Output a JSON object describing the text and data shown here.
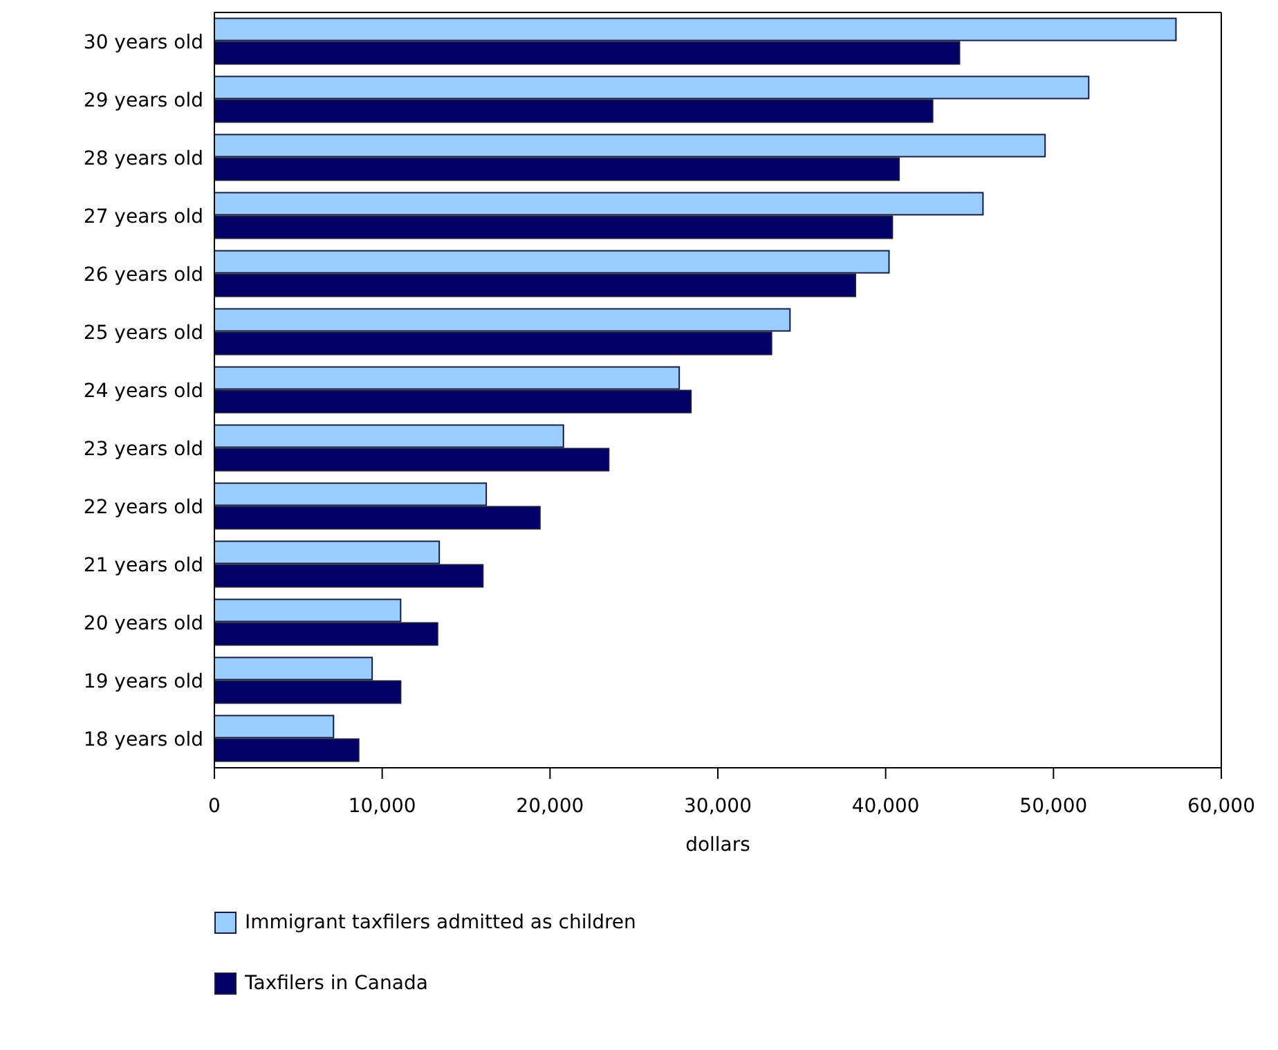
{
  "chart_data": {
    "type": "bar",
    "orientation": "horizontal",
    "xlabel": "dollars",
    "categories": [
      "30 years old",
      "29 years old",
      "28 years old",
      "27 years old",
      "26 years old",
      "25 years old",
      "24 years old",
      "23 years old",
      "22 years old",
      "21 years old",
      "20 years old",
      "19 years old",
      "18 years old"
    ],
    "series": [
      {
        "name": "Immigrant taxfilers admitted as children",
        "color": "#99ccff",
        "values": [
          57300,
          52100,
          49500,
          45800,
          40200,
          34300,
          27700,
          20800,
          16200,
          13400,
          11100,
          9400,
          7100
        ]
      },
      {
        "name": "Taxfilers in Canada",
        "color": "#000066",
        "values": [
          44400,
          42800,
          40800,
          40400,
          38200,
          33200,
          28400,
          23500,
          19400,
          16000,
          13300,
          11100,
          8600
        ]
      }
    ],
    "xlim": [
      0,
      60000
    ],
    "xticks": [
      {
        "value": 0,
        "label": "0"
      },
      {
        "value": 10000,
        "label": "10,000"
      },
      {
        "value": 20000,
        "label": "20,000"
      },
      {
        "value": 30000,
        "label": "30,000"
      },
      {
        "value": 40000,
        "label": "40,000"
      },
      {
        "value": 50000,
        "label": "50,000"
      },
      {
        "value": 60000,
        "label": "60,000"
      }
    ],
    "grid": false,
    "legend": "bottom"
  }
}
